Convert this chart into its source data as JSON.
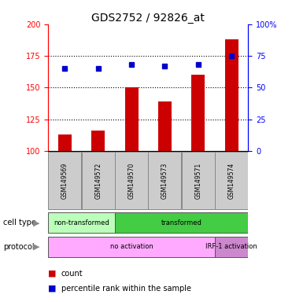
{
  "title": "GDS2752 / 92826_at",
  "samples": [
    "GSM149569",
    "GSM149572",
    "GSM149570",
    "GSM149573",
    "GSM149571",
    "GSM149574"
  ],
  "bar_values": [
    113,
    116,
    150,
    139,
    160,
    188
  ],
  "dot_values": [
    65,
    65,
    68,
    67,
    68,
    75
  ],
  "ylim_left": [
    100,
    200
  ],
  "ylim_right": [
    0,
    100
  ],
  "yticks_left": [
    100,
    125,
    150,
    175,
    200
  ],
  "yticks_right": [
    0,
    25,
    50,
    75,
    100
  ],
  "ytick_labels_right": [
    "0",
    "25",
    "50",
    "75",
    "100%"
  ],
  "grid_values": [
    125,
    150,
    175
  ],
  "bar_color": "#cc0000",
  "dot_color": "#0000cc",
  "cell_type_groups": [
    {
      "label": "non-transformed",
      "start": 0,
      "end": 2,
      "color": "#bbffbb"
    },
    {
      "label": "transformed",
      "start": 2,
      "end": 6,
      "color": "#44cc44"
    }
  ],
  "protocol_groups": [
    {
      "label": "no activation",
      "start": 0,
      "end": 5,
      "color": "#ffaaff"
    },
    {
      "label": "IRF-1 activation",
      "start": 5,
      "end": 6,
      "color": "#cc88cc"
    }
  ],
  "background_color": "#ffffff",
  "sample_box_color": "#cccccc",
  "label_fontsize": 7,
  "tick_fontsize": 7,
  "title_fontsize": 10
}
